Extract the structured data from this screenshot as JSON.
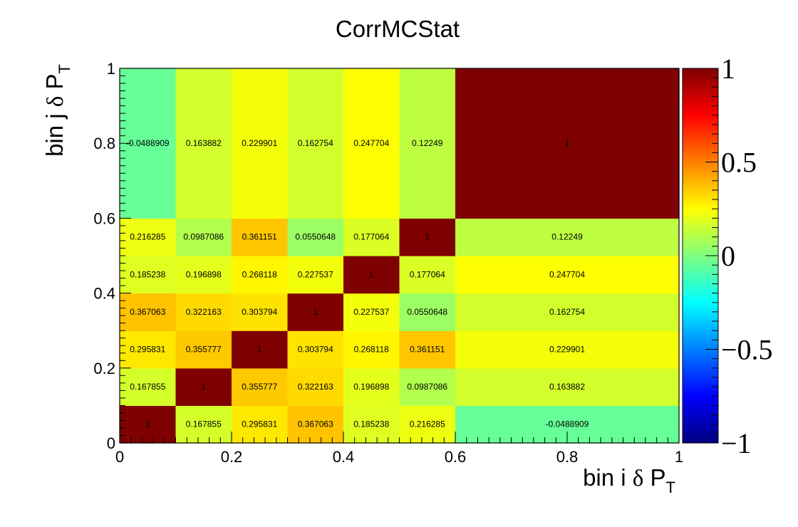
{
  "chart_data": {
    "type": "heatmap",
    "title": "CorrMCStat",
    "xlabel": {
      "text": "bin i ",
      "delta": "δ",
      "P": "P",
      "sub": "T"
    },
    "ylabel": {
      "text": "bin j ",
      "delta": "δ",
      "P": "P",
      "sub": "T"
    },
    "xlim": [
      0,
      1
    ],
    "ylim": [
      0,
      1
    ],
    "x_edges": [
      0,
      0.1,
      0.2,
      0.3,
      0.4,
      0.5,
      0.6,
      1.0
    ],
    "y_edges": [
      0,
      0.1,
      0.2,
      0.3,
      0.4,
      0.5,
      0.6,
      1.0
    ],
    "x_ticks": [
      "0",
      "0.2",
      "0.4",
      "0.6",
      "0.8",
      "1"
    ],
    "y_ticks": [
      "0",
      "0.2",
      "0.4",
      "0.6",
      "0.8",
      "1"
    ],
    "zlim": [
      -1,
      1
    ],
    "z_ticks": [
      "−1",
      "−0.5",
      "0",
      "0.5",
      "1"
    ],
    "values": [
      [
        "1",
        "0.167855",
        "0.295831",
        "0.367063",
        "0.185238",
        "0.216285",
        "-0.0488909"
      ],
      [
        "0.167855",
        "1",
        "0.355777",
        "0.322163",
        "0.196898",
        "0.0987086",
        "0.163882"
      ],
      [
        "0.295831",
        "0.355777",
        "1",
        "0.303794",
        "0.268118",
        "0.361151",
        "0.229901"
      ],
      [
        "0.367063",
        "0.322163",
        "0.303794",
        "1",
        "0.227537",
        "0.0550648",
        "0.162754"
      ],
      [
        "0.185238",
        "0.196898",
        "0.268118",
        "0.227537",
        "1",
        "0.177064",
        "0.247704"
      ],
      [
        "0.216285",
        "0.0987086",
        "0.361151",
        "0.0550648",
        "0.177064",
        "1",
        "0.12249"
      ],
      [
        "-0.0488909",
        "0.163882",
        "0.229901",
        "0.162754",
        "0.247704",
        "0.12249",
        "1"
      ]
    ],
    "colormap": [
      "#00007f",
      "#0000ff",
      "#007fff",
      "#00ffff",
      "#7fff7f",
      "#ffff00",
      "#ff7f00",
      "#ff0000",
      "#7f0000"
    ]
  }
}
